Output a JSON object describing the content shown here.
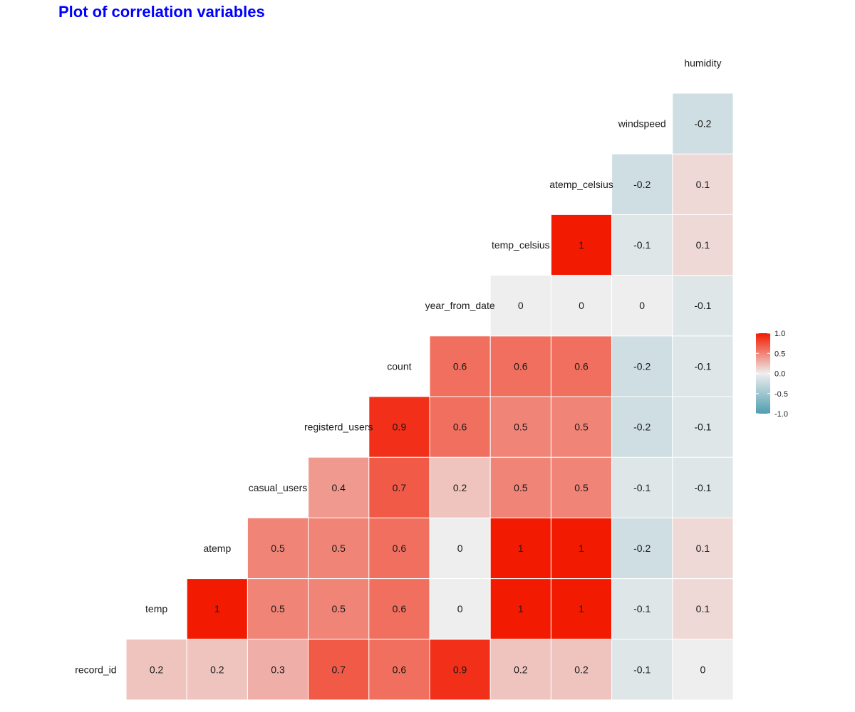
{
  "chart_data": {
    "type": "heatmap",
    "title": "Plot of correlation variables",
    "variables": [
      "record_id",
      "temp",
      "atemp",
      "casual_users",
      "registerd_users",
      "count",
      "year_from_date",
      "temp_celsius",
      "atemp_celsius",
      "windspeed",
      "humidity"
    ],
    "values": [
      [
        null,
        0.2,
        0.2,
        0.3,
        0.7,
        0.6,
        0.9,
        0.2,
        0.2,
        -0.1,
        0
      ],
      [
        null,
        null,
        1,
        0.5,
        0.5,
        0.6,
        0,
        1,
        1,
        -0.1,
        0.1
      ],
      [
        null,
        null,
        null,
        0.5,
        0.5,
        0.6,
        0,
        1,
        1,
        -0.2,
        0.1
      ],
      [
        null,
        null,
        null,
        null,
        0.4,
        0.7,
        0.2,
        0.5,
        0.5,
        -0.1,
        -0.1
      ],
      [
        null,
        null,
        null,
        null,
        null,
        0.9,
        0.6,
        0.5,
        0.5,
        -0.2,
        -0.1
      ],
      [
        null,
        null,
        null,
        null,
        null,
        null,
        0.6,
        0.6,
        0.6,
        -0.2,
        -0.1
      ],
      [
        null,
        null,
        null,
        null,
        null,
        null,
        null,
        0,
        0,
        0,
        -0.1
      ],
      [
        null,
        null,
        null,
        null,
        null,
        null,
        null,
        null,
        1,
        -0.1,
        0.1
      ],
      [
        null,
        null,
        null,
        null,
        null,
        null,
        null,
        null,
        null,
        -0.2,
        0.1
      ],
      [
        null,
        null,
        null,
        null,
        null,
        null,
        null,
        null,
        null,
        null,
        -0.2
      ]
    ],
    "color_scale": {
      "low": "#4F9EB0",
      "mid": "#EEEEEE",
      "high": "#F21A00",
      "range": [
        -1.0,
        1.0
      ],
      "ticks": [
        "1.0",
        "0.5",
        "0.0",
        "-0.5",
        "-1.0"
      ]
    },
    "legend_position": "right",
    "grid": false
  }
}
